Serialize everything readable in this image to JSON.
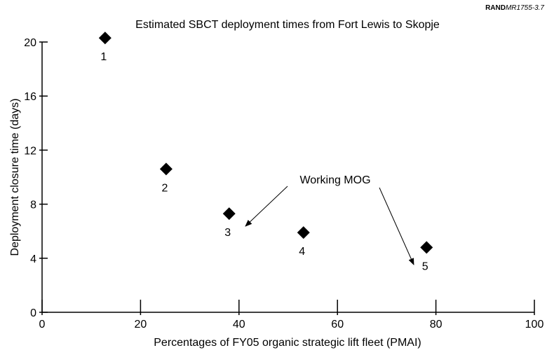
{
  "chart_data": {
    "type": "scatter",
    "source": {
      "org": "RAND",
      "id": "MR1755-3.7"
    },
    "title": "Estimated SBCT deployment times from Fort Lewis to Skopje",
    "x_label": "Percentages of FY05 organic strategic lift fleet (PMAI)",
    "y_label": "Deployment closure time (days)",
    "x": [
      12.8,
      25.2,
      38.0,
      53.1,
      78.1
    ],
    "values": [
      20.3,
      10.6,
      7.3,
      5.9,
      4.8
    ],
    "point_labels": [
      "1",
      "2",
      "3",
      "4",
      "5"
    ],
    "color": "#000000",
    "annotation": "Working MOG",
    "xlim": [
      0,
      100
    ],
    "xticks": [
      0,
      20,
      40,
      60,
      80,
      100
    ],
    "ylim": [
      0,
      20
    ],
    "yticks": [
      0,
      4,
      8,
      12,
      16,
      20
    ],
    "grid": false
  }
}
